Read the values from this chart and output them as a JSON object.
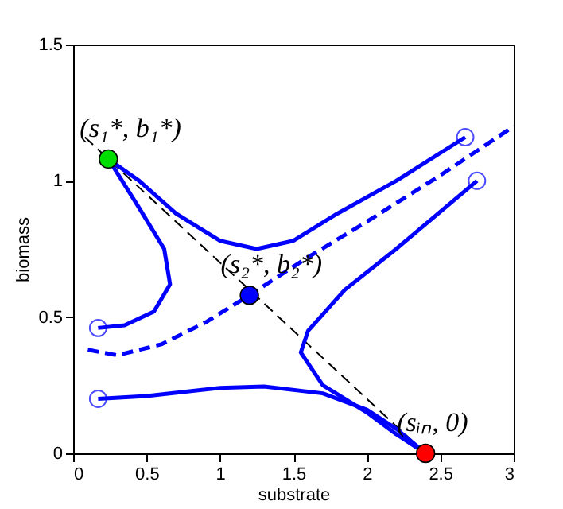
{
  "chart_data": {
    "type": "line",
    "xlabel": "substrate",
    "ylabel": "biomass",
    "xlim": [
      0,
      3
    ],
    "ylim": [
      0,
      1.5
    ],
    "xticks": [
      0,
      0.5,
      1,
      1.5,
      2,
      2.5,
      3
    ],
    "yticks": [
      0,
      0.5,
      1,
      1.5
    ],
    "grid": false,
    "series": [
      {
        "color": "#000000",
        "line_style": "dashed",
        "x": [
          0.08,
          2.4
        ],
        "values": [
          1.16,
          0
        ]
      },
      {
        "color": "#0000ff",
        "line_style": "dashed",
        "x": [
          0.1,
          0.3,
          0.6,
          0.9,
          1.2,
          1.6,
          2.0,
          2.5,
          3.0
        ],
        "values": [
          0.38,
          0.36,
          0.4,
          0.48,
          0.58,
          0.72,
          0.85,
          1.02,
          1.2
        ]
      },
      {
        "color": "#0000ff",
        "line_style": "solid",
        "x": [
          2.67,
          2.2,
          1.8,
          1.5,
          1.25,
          1.0,
          0.7,
          0.45,
          0.24
        ],
        "values": [
          1.16,
          1.0,
          0.88,
          0.78,
          0.75,
          0.78,
          0.88,
          1.0,
          1.08
        ]
      },
      {
        "color": "#0000ff",
        "line_style": "solid",
        "x": [
          0.24,
          0.45,
          0.62,
          0.66,
          0.55,
          0.35,
          0.17
        ],
        "values": [
          1.08,
          0.9,
          0.75,
          0.62,
          0.52,
          0.47,
          0.46
        ]
      },
      {
        "color": "#0000ff",
        "line_style": "solid",
        "x": [
          2.75,
          2.2,
          1.85,
          1.6,
          1.55,
          1.7,
          2.0,
          2.2,
          2.4
        ],
        "values": [
          1.0,
          0.75,
          0.6,
          0.45,
          0.37,
          0.25,
          0.15,
          0.07,
          0
        ]
      },
      {
        "color": "#0000ff",
        "line_style": "solid",
        "x": [
          0.17,
          0.5,
          1.0,
          1.3,
          1.7,
          2.0,
          2.2,
          2.4
        ],
        "values": [
          0.2,
          0.21,
          0.24,
          0.245,
          0.22,
          0.16,
          0.09,
          0
        ]
      },
      {
        "type": "scatter",
        "color": "#0000ff",
        "marker": "circle",
        "x": [
          2.67,
          2.75,
          0.17,
          0.17
        ],
        "values": [
          1.16,
          1.0,
          0.46,
          0.2
        ]
      },
      {
        "type": "scatter",
        "colors": [
          "#00dd00",
          "#0000ff",
          "#ff0000"
        ],
        "marker": "circle",
        "x": [
          0.24,
          1.2,
          2.4
        ],
        "values": [
          1.08,
          0.58,
          0
        ]
      }
    ],
    "annotations": [
      {
        "text": "(s₁*, b₁*)",
        "x": 0.24,
        "y": 1.08
      },
      {
        "text": "(s₂*, b₂*)",
        "x": 1.2,
        "y": 0.58
      },
      {
        "text": "(sᵢₙ, 0)",
        "x": 2.4,
        "y": 0
      }
    ]
  }
}
